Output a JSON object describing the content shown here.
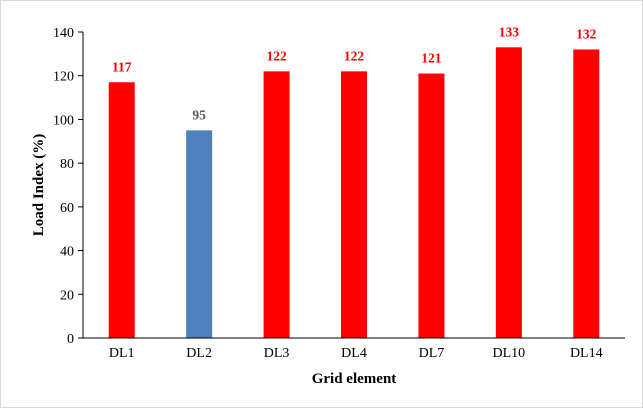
{
  "chart_data": {
    "type": "bar",
    "title": "",
    "xlabel": "Grid element",
    "ylabel": "Load Index (%)",
    "ylim": [
      0,
      140
    ],
    "yticks": [
      0,
      20,
      40,
      60,
      80,
      100,
      120,
      140
    ],
    "grid": false,
    "legend": "none",
    "categories": [
      "DL1",
      "DL2",
      "DL3",
      "DL4",
      "DL7",
      "DL10",
      "DL14"
    ],
    "values": [
      117,
      95,
      122,
      122,
      121,
      133,
      132
    ],
    "data_labels": [
      "117",
      "95",
      "122",
      "122",
      "121",
      "133",
      "132"
    ],
    "bar_colors": [
      "#ff0000",
      "#4f81bd",
      "#ff0000",
      "#ff0000",
      "#ff0000",
      "#ff0000",
      "#ff0000"
    ],
    "label_colors": [
      "#ff0000",
      "#595959",
      "#ff0000",
      "#ff0000",
      "#ff0000",
      "#ff0000",
      "#ff0000"
    ]
  }
}
